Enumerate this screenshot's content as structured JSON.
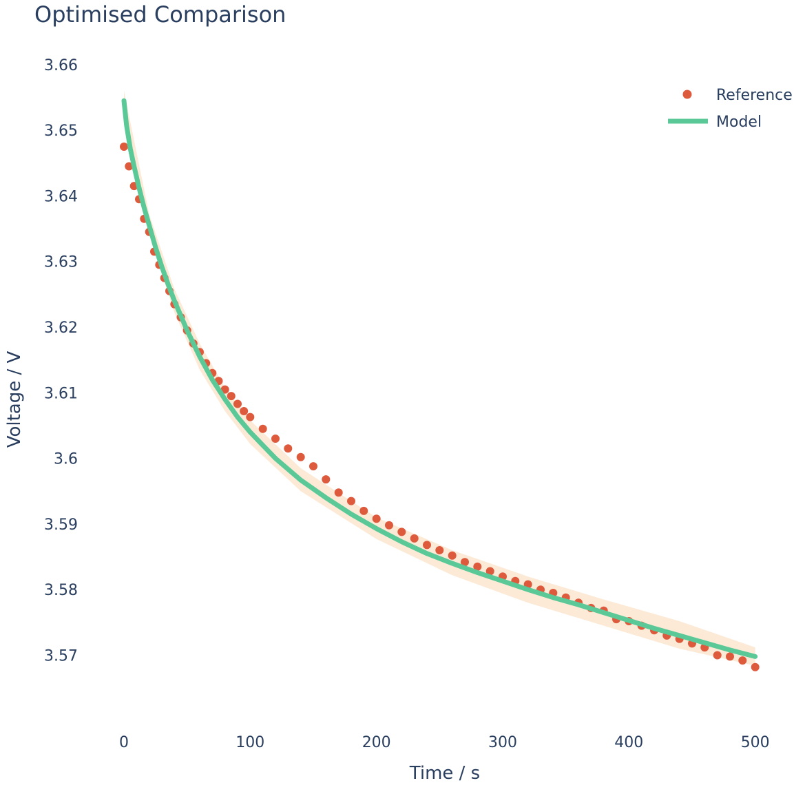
{
  "chart_data": {
    "type": "scatter",
    "title": "Optimised Comparison",
    "xlabel": "Time / s",
    "ylabel": "Voltage  / V",
    "xlim": [
      -30,
      510
    ],
    "ylim": [
      3.5625,
      3.6625
    ],
    "x_ticks": [
      0,
      100,
      200,
      300,
      400,
      500
    ],
    "x_tick_labels": [
      "0",
      "100",
      "200",
      "300",
      "400",
      "500"
    ],
    "y_ticks": [
      3.57,
      3.58,
      3.59,
      3.6,
      3.61,
      3.62,
      3.63,
      3.64,
      3.65,
      3.66
    ],
    "y_tick_labels": [
      "3.57",
      "3.58",
      "3.59",
      "3.6",
      "3.61",
      "3.62",
      "3.63",
      "3.64",
      "3.65",
      "3.66"
    ],
    "grid": false,
    "legend_position": "top-right",
    "series": [
      {
        "name": "Reference",
        "mode": "markers",
        "color": "#dd5a3d",
        "x": [
          0,
          4,
          8,
          12,
          16,
          20,
          24,
          28,
          32,
          36,
          40,
          45,
          50,
          55,
          60,
          65,
          70,
          75,
          80,
          85,
          90,
          95,
          100,
          110,
          120,
          130,
          140,
          150,
          160,
          170,
          180,
          190,
          200,
          210,
          220,
          230,
          240,
          250,
          260,
          270,
          280,
          290,
          300,
          310,
          320,
          330,
          340,
          350,
          360,
          370,
          380,
          390,
          400,
          410,
          420,
          430,
          440,
          450,
          460,
          470,
          480,
          490,
          500
        ],
        "y": [
          3.6475,
          3.6445,
          3.6415,
          3.6395,
          3.6365,
          3.6345,
          3.6315,
          3.6295,
          3.6275,
          3.6255,
          3.6235,
          3.6215,
          3.6195,
          3.6175,
          3.6162,
          3.6145,
          3.613,
          3.6118,
          3.6105,
          3.6095,
          3.6083,
          3.6072,
          3.6063,
          3.6045,
          3.603,
          3.6015,
          3.6002,
          3.5988,
          3.5968,
          3.5948,
          3.5935,
          3.592,
          3.5908,
          3.5898,
          3.5888,
          3.5878,
          3.5868,
          3.586,
          3.5852,
          3.5842,
          3.5835,
          3.5828,
          3.582,
          3.5813,
          3.5808,
          3.58,
          3.5795,
          3.5788,
          3.578,
          3.5772,
          3.5768,
          3.5755,
          3.5752,
          3.5745,
          3.5738,
          3.573,
          3.5725,
          3.5718,
          3.5712,
          3.57,
          3.5698,
          3.5692,
          3.5682
        ]
      },
      {
        "name": "Model",
        "mode": "lines",
        "color": "#5ac997",
        "x": [
          0,
          2,
          5,
          8,
          12,
          16,
          20,
          25,
          30,
          35,
          40,
          50,
          60,
          70,
          80,
          90,
          100,
          120,
          140,
          160,
          180,
          200,
          220,
          240,
          260,
          280,
          300,
          320,
          340,
          360,
          380,
          400,
          420,
          440,
          460,
          480,
          500
        ],
        "y": [
          3.6545,
          3.6508,
          3.6472,
          3.6445,
          3.6412,
          3.6382,
          3.6355,
          3.6322,
          3.6292,
          3.6265,
          3.624,
          3.6195,
          3.6155,
          3.612,
          3.609,
          3.6063,
          3.604,
          3.6,
          3.5967,
          3.594,
          3.5915,
          3.5893,
          3.5873,
          3.5855,
          3.584,
          3.5826,
          3.5813,
          3.58,
          3.5788,
          3.5777,
          3.5765,
          3.5753,
          3.5741,
          3.573,
          3.5719,
          3.5708,
          3.5698
        ]
      }
    ],
    "band": {
      "color": "#fbe3c8",
      "x": [
        0,
        20,
        40,
        60,
        80,
        100,
        140,
        200,
        260,
        320,
        380,
        440,
        500
      ],
      "upper": [
        3.656,
        3.6372,
        3.6258,
        3.6175,
        3.6108,
        3.6058,
        3.5985,
        3.591,
        3.586,
        3.582,
        3.5785,
        3.5752,
        3.5712
      ],
      "lower": [
        3.653,
        3.634,
        3.6222,
        3.6135,
        3.6072,
        3.6022,
        3.595,
        3.5877,
        3.5822,
        3.578,
        3.5745,
        3.571,
        3.5684
      ]
    }
  }
}
